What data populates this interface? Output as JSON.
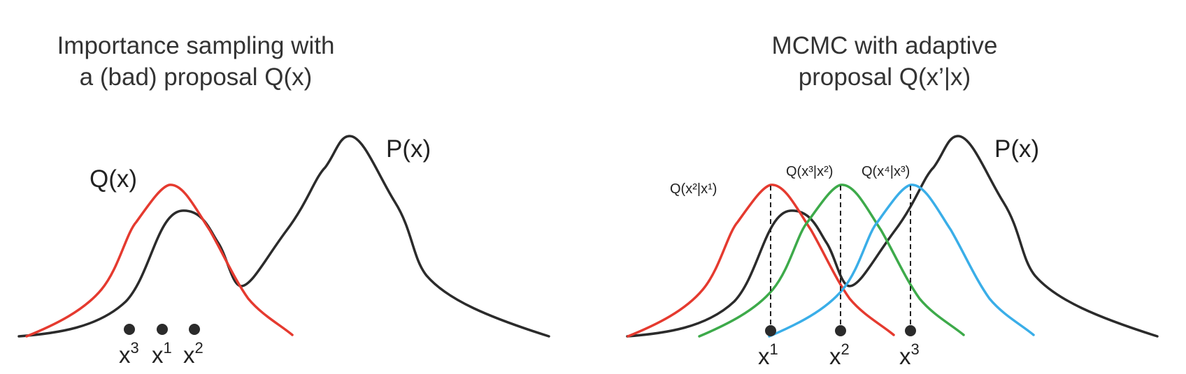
{
  "left_panel": {
    "title_line1": "Importance sampling with",
    "title_line2": "a (bad) proposal Q(x)",
    "target_label": "P(x)",
    "proposal_label": "Q(x)",
    "samples": [
      {
        "base": "x",
        "sup": "3"
      },
      {
        "base": "x",
        "sup": "1"
      },
      {
        "base": "x",
        "sup": "2"
      }
    ]
  },
  "right_panel": {
    "title_line1": "MCMC with adaptive",
    "title_line2": "proposal Q(x’|x)",
    "target_label": "P(x)",
    "proposals": [
      {
        "label": "Q(x²|x¹)",
        "color": "#e53a2f"
      },
      {
        "label": "Q(x³|x²)",
        "color": "#3daa4a"
      },
      {
        "label": "Q(x⁴|x³)",
        "color": "#3aaee8"
      }
    ],
    "samples": [
      {
        "base": "x",
        "sup": "1"
      },
      {
        "base": "x",
        "sup": "2"
      },
      {
        "base": "x",
        "sup": "3"
      }
    ]
  },
  "colors": {
    "target": "#2b2b2b",
    "bad_proposal": "#e53a2f",
    "dot": "#2b2b2b"
  }
}
